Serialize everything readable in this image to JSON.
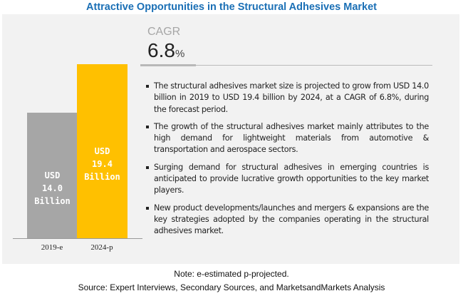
{
  "title": "Attractive Opportunities in the Structural Adhesives Market",
  "cagr": {
    "label": "CAGR",
    "value": "6.8",
    "unit": "%"
  },
  "chart_data": {
    "type": "bar",
    "categories": [
      "2019-e",
      "2024-p"
    ],
    "values": [
      14.0,
      19.4
    ],
    "value_labels": [
      [
        "USD",
        "14.0",
        "Billion"
      ],
      [
        "USD",
        "19.4",
        "Billion"
      ]
    ],
    "colors": [
      "#a6a6a6",
      "#ffc000"
    ],
    "unit": "USD Billion"
  },
  "bullets": [
    "The structural adhesives market size is projected to grow from USD 14.0 billion in 2019 to USD 19.4 billion by 2024, at a CAGR of 6.8%, during the forecast period.",
    "The growth of the structural adhesives market mainly attributes to the high demand for lightweight materials from automotive & transportation and aerospace sectors.",
    "Surging demand for structural adhesives in emerging countries is anticipated to provide lucrative growth opportunities to the key market players.",
    "New product developments/launches and mergers & expansions are the key strategies adopted by the companies operating in the structural adhesives market."
  ],
  "footer": {
    "note": "Note: e-estimated p-projected.",
    "source": "Source: Expert Interviews, Secondary Sources, and MarketsandMarkets Analysis"
  }
}
